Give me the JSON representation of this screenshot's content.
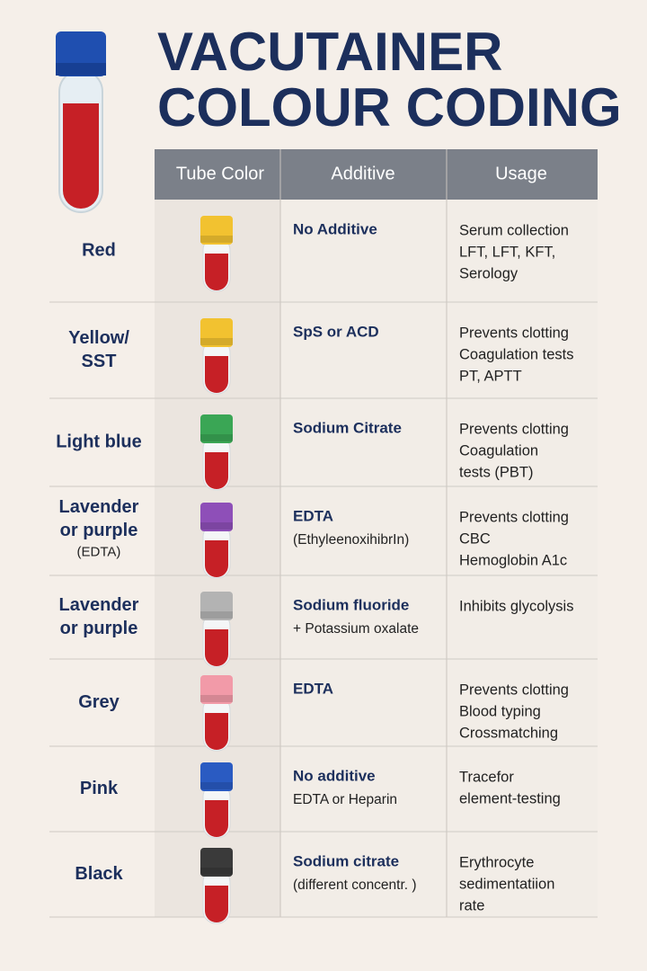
{
  "header": {
    "title": [
      "VACUTAINER",
      "COLOUR CODING"
    ]
  },
  "table": {
    "columns": [
      "Tube Color",
      "Additive",
      "Usage"
    ],
    "rows": [
      {
        "name": [
          "Red"
        ],
        "cap_color": "#f2c230",
        "additive": {
          "main": "No Additive"
        },
        "usage": [
          "Serum collection",
          "LFT, LFT, KFT,",
          "Serology"
        ]
      },
      {
        "name": [
          "Yellow/",
          "SST"
        ],
        "cap_color": "#f2c230",
        "additive": {
          "main": "SpS or ACD"
        },
        "usage": [
          "Prevents clotting",
          "Coagulation tests",
          "PT, APTT"
        ]
      },
      {
        "name": [
          "Light blue"
        ],
        "cap_color": "#3aa655",
        "additive": {
          "main": "Sodium Citrate"
        },
        "usage": [
          "Prevents clotting",
          "Coagulation",
          "tests (PBT)"
        ]
      },
      {
        "name": [
          "Lavender",
          "or purple"
        ],
        "name_note": "(EDTA)",
        "cap_color": "#8e4fb8",
        "additive": {
          "main": "EDTA",
          "note": "(EthyleenoxihibrIn)"
        },
        "usage": [
          "Prevents clotting",
          "CBC",
          "Hemoglobin A1c"
        ]
      },
      {
        "name": [
          "Lavender",
          "or purple"
        ],
        "cap_color": "#b3b3b3",
        "additive": {
          "main": "Sodium fluoride",
          "note": "+ Potassium oxalate"
        },
        "usage": [
          "Inhibits glycolysis"
        ]
      },
      {
        "name": [
          "Grey"
        ],
        "cap_color": "#f29aa8",
        "additive": {
          "main": "EDTA"
        },
        "usage": [
          "Prevents clotting",
          "Blood typing",
          "Crossmatching"
        ]
      },
      {
        "name": [
          "Pink"
        ],
        "cap_color": "#2a5bc2",
        "additive": {
          "main": "No additive",
          "note": "EDTA or Heparin"
        },
        "usage": [
          "Tracefor",
          "element-testing"
        ]
      },
      {
        "name": [
          "Black"
        ],
        "cap_color": "#3a3a3a",
        "additive": {
          "main": "Sodium citrate",
          "note": "(different concentr. )"
        },
        "usage": [
          "Erythrocyte",
          "sedimentatiion",
          "rate"
        ]
      }
    ]
  }
}
